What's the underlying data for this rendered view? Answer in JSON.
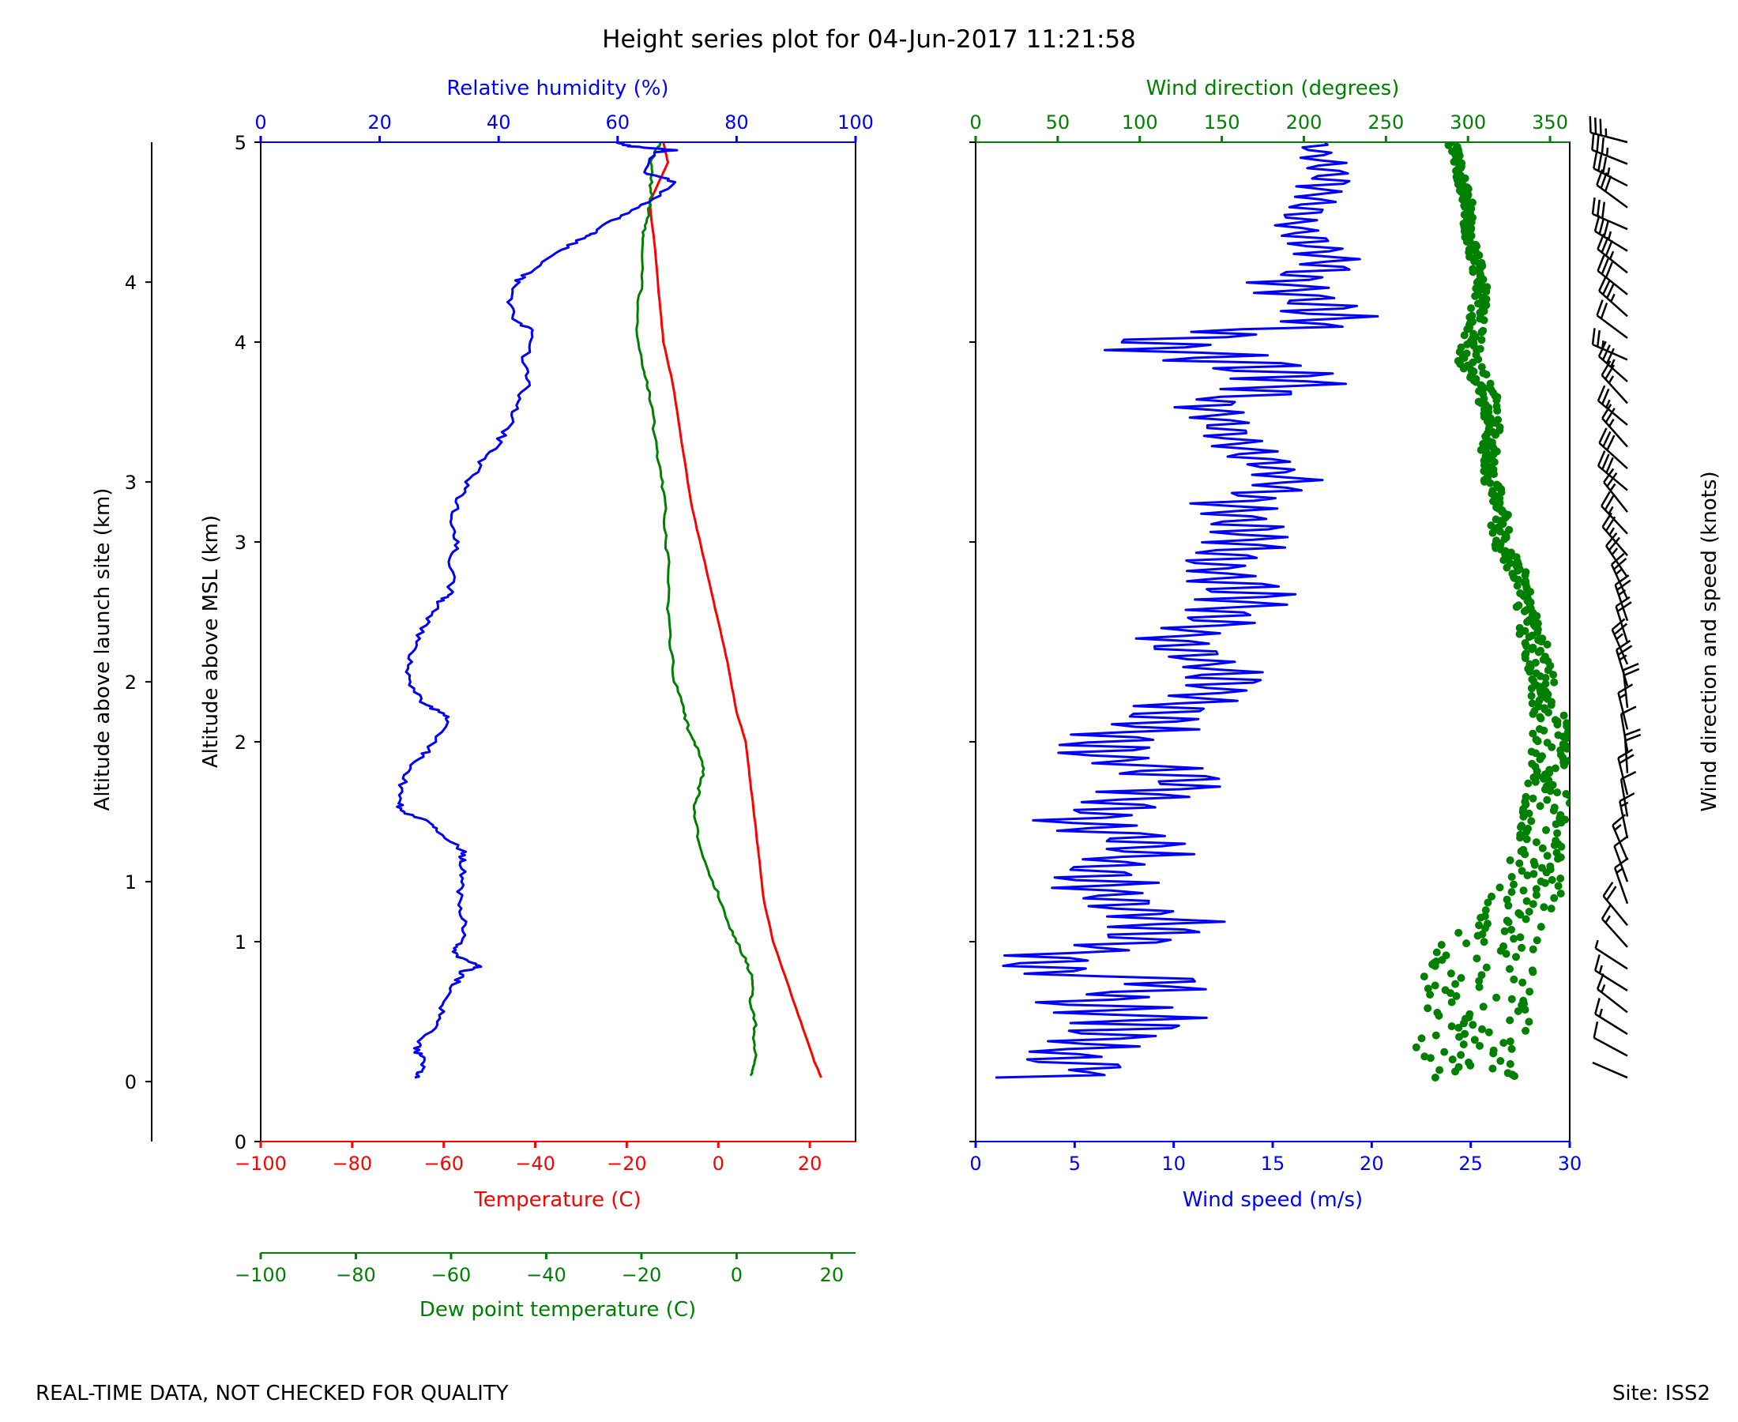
{
  "chart_data": [
    {
      "type": "line",
      "title": "Height series plot for 04-Jun-2017 11:21:58",
      "left_ylabel": "Altitude above launch site (km)",
      "left_yticks": [
        0,
        1,
        2,
        3,
        4
      ],
      "ylabel": "Altitude above MSL (km)",
      "ylim": [
        0,
        5
      ],
      "yticks": [
        0,
        1,
        2,
        3,
        4,
        5
      ],
      "launch_offset_km": 0.3,
      "axes": {
        "humidity": {
          "label": "Relative humidity (%)",
          "range": [
            0,
            100
          ],
          "ticks": [
            0,
            20,
            40,
            60,
            80,
            100
          ],
          "color": "#0000ff"
        },
        "temperature": {
          "label": "Temperature (C)",
          "range": [
            -100,
            30
          ],
          "ticks": [
            -100,
            -80,
            -60,
            -40,
            -20,
            0,
            20
          ],
          "color": "#ff0000"
        },
        "dewpoint": {
          "label": "Dew point temperature (C)",
          "range": [
            -100,
            25
          ],
          "ticks": [
            -100,
            -80,
            -60,
            -40,
            -20,
            0,
            20
          ],
          "color": "#008000"
        }
      },
      "series": [
        {
          "name": "Temperature",
          "axis": "temperature",
          "color": "#ff0000",
          "points": [
            [
              22.5,
              0.32
            ],
            [
              21,
              0.4
            ],
            [
              18,
              0.6
            ],
            [
              15,
              0.8
            ],
            [
              12,
              1.0
            ],
            [
              10,
              1.2
            ],
            [
              9,
              1.4
            ],
            [
              8,
              1.6
            ],
            [
              7,
              1.8
            ],
            [
              6,
              2.0
            ],
            [
              4,
              2.15
            ],
            [
              2,
              2.4
            ],
            [
              0,
              2.6
            ],
            [
              -2,
              2.8
            ],
            [
              -4,
              3.0
            ],
            [
              -6,
              3.2
            ],
            [
              -8,
              3.5
            ],
            [
              -10,
              3.8
            ],
            [
              -12,
              4.0
            ],
            [
              -13,
              4.25
            ],
            [
              -14,
              4.5
            ],
            [
              -15,
              4.7
            ],
            [
              -11,
              4.9
            ],
            [
              -12,
              5.0
            ]
          ]
        },
        {
          "name": "Dew point temperature",
          "axis": "dewpoint",
          "color": "#008000",
          "points": [
            [
              3,
              0.33
            ],
            [
              4,
              0.4
            ],
            [
              3.5,
              0.5
            ],
            [
              4,
              0.6
            ],
            [
              3,
              0.7
            ],
            [
              3.5,
              0.8
            ],
            [
              2,
              0.9
            ],
            [
              0,
              1.0
            ],
            [
              -2,
              1.1
            ],
            [
              -4,
              1.25
            ],
            [
              -6,
              1.35
            ],
            [
              -8,
              1.5
            ],
            [
              -9,
              1.65
            ],
            [
              -8,
              1.75
            ],
            [
              -7,
              1.85
            ],
            [
              -8,
              1.95
            ],
            [
              -10,
              2.05
            ],
            [
              -11,
              2.15
            ],
            [
              -13,
              2.3
            ],
            [
              -14,
              2.5
            ],
            [
              -14.5,
              2.7
            ],
            [
              -14,
              2.9
            ],
            [
              -15,
              3.0
            ],
            [
              -15,
              3.2
            ],
            [
              -16,
              3.35
            ],
            [
              -17,
              3.5
            ],
            [
              -18,
              3.7
            ],
            [
              -19,
              3.8
            ],
            [
              -20,
              3.9
            ],
            [
              -21,
              4.1
            ],
            [
              -20,
              4.3
            ],
            [
              -20,
              4.5
            ],
            [
              -19,
              4.6
            ],
            [
              -18,
              4.7
            ],
            [
              -18,
              4.8
            ],
            [
              -18,
              4.9
            ],
            [
              -16,
              5.0
            ]
          ]
        },
        {
          "name": "Relative humidity",
          "axis": "humidity",
          "color": "#0000ff",
          "points": [
            [
              26,
              0.32
            ],
            [
              27,
              0.35
            ],
            [
              28,
              0.42
            ],
            [
              26,
              0.45
            ],
            [
              27,
              0.5
            ],
            [
              30,
              0.6
            ],
            [
              31,
              0.7
            ],
            [
              33,
              0.8
            ],
            [
              34,
              0.85
            ],
            [
              37,
              0.88
            ],
            [
              35,
              0.9
            ],
            [
              32,
              0.95
            ],
            [
              34,
              1.0
            ],
            [
              34,
              1.1
            ],
            [
              33,
              1.2
            ],
            [
              34,
              1.3
            ],
            [
              34,
              1.4
            ],
            [
              34,
              1.45
            ],
            [
              30,
              1.55
            ],
            [
              28,
              1.6
            ],
            [
              24,
              1.65
            ],
            [
              23,
              1.7
            ],
            [
              24,
              1.8
            ],
            [
              26,
              1.9
            ],
            [
              28,
              1.95
            ],
            [
              32,
              2.1
            ],
            [
              30,
              2.15
            ],
            [
              27,
              2.2
            ],
            [
              25,
              2.3
            ],
            [
              25,
              2.4
            ],
            [
              26,
              2.5
            ],
            [
              28,
              2.6
            ],
            [
              30,
              2.7
            ],
            [
              32,
              2.75
            ],
            [
              32,
              2.9
            ],
            [
              33,
              3.0
            ],
            [
              32,
              3.1
            ],
            [
              33,
              3.2
            ],
            [
              35,
              3.3
            ],
            [
              37,
              3.4
            ],
            [
              40,
              3.5
            ],
            [
              42,
              3.6
            ],
            [
              43,
              3.7
            ],
            [
              45,
              3.8
            ],
            [
              44,
              3.9
            ],
            [
              46,
              4.05
            ],
            [
              43,
              4.1
            ],
            [
              42,
              4.2
            ],
            [
              43,
              4.3
            ],
            [
              45,
              4.35
            ],
            [
              50,
              4.45
            ],
            [
              54,
              4.52
            ],
            [
              56,
              4.55
            ],
            [
              60,
              4.62
            ],
            [
              65,
              4.7
            ],
            [
              70,
              4.8
            ],
            [
              64,
              4.85
            ],
            [
              66,
              4.95
            ],
            [
              70,
              4.96
            ],
            [
              62,
              4.98
            ],
            [
              60,
              5.0
            ]
          ]
        }
      ]
    },
    {
      "type": "line",
      "xlabel": "Wind speed (m/s)",
      "top_xlabel": "Wind direction (degrees)",
      "ylim": [
        0,
        5
      ],
      "axes": {
        "speed": {
          "label": "Wind speed (m/s)",
          "range": [
            0,
            30
          ],
          "ticks": [
            0,
            5,
            10,
            15,
            20,
            25,
            30
          ],
          "color": "#0000ff"
        },
        "direction": {
          "label": "Wind direction (degrees)",
          "range": [
            0,
            362
          ],
          "ticks": [
            0,
            50,
            100,
            150,
            200,
            250,
            300,
            350
          ],
          "color": "#008000"
        }
      },
      "series": [
        {
          "name": "Wind speed",
          "axis": "speed",
          "color": "#0000ff",
          "points": [
            [
              1,
              0.32
            ],
            [
              7,
              0.35
            ],
            [
              4,
              0.42
            ],
            [
              6,
              0.5
            ],
            [
              9,
              0.6
            ],
            [
              5,
              0.7
            ],
            [
              11,
              0.8
            ],
            [
              4,
              0.85
            ],
            [
              3,
              0.9
            ],
            [
              8,
              1.0
            ],
            [
              10,
              1.1
            ],
            [
              7,
              1.2
            ],
            [
              6,
              1.35
            ],
            [
              9,
              1.5
            ],
            [
              5,
              1.6
            ],
            [
              11,
              1.8
            ],
            [
              6,
              1.95
            ],
            [
              9,
              2.1
            ],
            [
              13,
              2.3
            ],
            [
              10,
              2.5
            ],
            [
              14,
              2.7
            ],
            [
              12,
              2.9
            ],
            [
              14,
              3.0
            ],
            [
              13,
              3.2
            ],
            [
              16,
              3.3
            ],
            [
              13,
              3.5
            ],
            [
              12,
              3.7
            ],
            [
              17,
              3.8
            ],
            [
              9,
              4.0
            ],
            [
              18,
              4.1
            ],
            [
              16,
              4.3
            ],
            [
              18,
              4.4
            ],
            [
              16,
              4.6
            ],
            [
              18,
              4.8
            ],
            [
              17,
              5.0
            ]
          ],
          "variability": [
            [
              3,
              0.45
            ],
            [
              4,
              0.6
            ],
            [
              3,
              0.8
            ],
            [
              3,
              1.0
            ],
            [
              3,
              1.2
            ],
            [
              3,
              1.45
            ],
            [
              3,
              1.7
            ],
            [
              3,
              2.0
            ],
            [
              2.5,
              2.3
            ],
            [
              2.5,
              2.6
            ],
            [
              2.5,
              2.9
            ],
            [
              2,
              3.2
            ],
            [
              1.5,
              3.6
            ],
            [
              4,
              3.9
            ],
            [
              2.5,
              4.2
            ],
            [
              1.5,
              4.5
            ],
            [
              1.5,
              4.8
            ],
            [
              1,
              5.0
            ]
          ]
        },
        {
          "name": "Wind direction",
          "axis": "direction",
          "color": "#008000",
          "points": [
            [
              295,
              0.32
            ],
            [
              300,
              0.4
            ],
            [
              300,
              0.5
            ],
            [
              305,
              0.6
            ],
            [
              305,
              0.7
            ],
            [
              305,
              0.8
            ],
            [
              310,
              0.9
            ],
            [
              315,
              1.0
            ],
            [
              325,
              1.1
            ],
            [
              335,
              1.2
            ],
            [
              340,
              1.35
            ],
            [
              345,
              1.5
            ],
            [
              348,
              1.65
            ],
            [
              350,
              1.8
            ],
            [
              350,
              2.0
            ],
            [
              348,
              2.15
            ],
            [
              345,
              2.3
            ],
            [
              340,
              2.5
            ],
            [
              335,
              2.7
            ],
            [
              330,
              2.85
            ],
            [
              320,
              3.0
            ],
            [
              318,
              3.2
            ],
            [
              312,
              3.4
            ],
            [
              315,
              3.6
            ],
            [
              310,
              3.8
            ],
            [
              300,
              3.9
            ],
            [
              303,
              4.0
            ],
            [
              305,
              4.1
            ],
            [
              308,
              4.25
            ],
            [
              305,
              4.4
            ],
            [
              300,
              4.55
            ],
            [
              300,
              4.7
            ],
            [
              295,
              4.85
            ],
            [
              290,
              5.0
            ]
          ],
          "variability": [
            [
              35,
              0.32
            ],
            [
              35,
              0.5
            ],
            [
              35,
              0.7
            ],
            [
              35,
              0.9
            ],
            [
              25,
              1.1
            ],
            [
              20,
              1.3
            ],
            [
              15,
              1.5
            ],
            [
              15,
              1.7
            ],
            [
              12,
              1.9
            ],
            [
              12,
              2.1
            ],
            [
              8,
              2.3
            ],
            [
              8,
              2.5
            ],
            [
              6,
              2.7
            ],
            [
              5,
              2.9
            ],
            [
              6,
              3.1
            ],
            [
              5,
              3.3
            ],
            [
              5,
              3.5
            ],
            [
              6,
              3.7
            ],
            [
              8,
              3.9
            ],
            [
              5,
              4.1
            ],
            [
              4,
              4.3
            ],
            [
              3,
              4.5
            ],
            [
              3,
              4.7
            ],
            [
              3,
              5.0
            ]
          ]
        }
      ]
    },
    {
      "type": "barbs",
      "ylabel": "Wind direction and speed (knots)"
    }
  ],
  "footer": {
    "quality_note": "REAL-TIME DATA, NOT CHECKED FOR QUALITY",
    "site": "Site: ISS2"
  }
}
